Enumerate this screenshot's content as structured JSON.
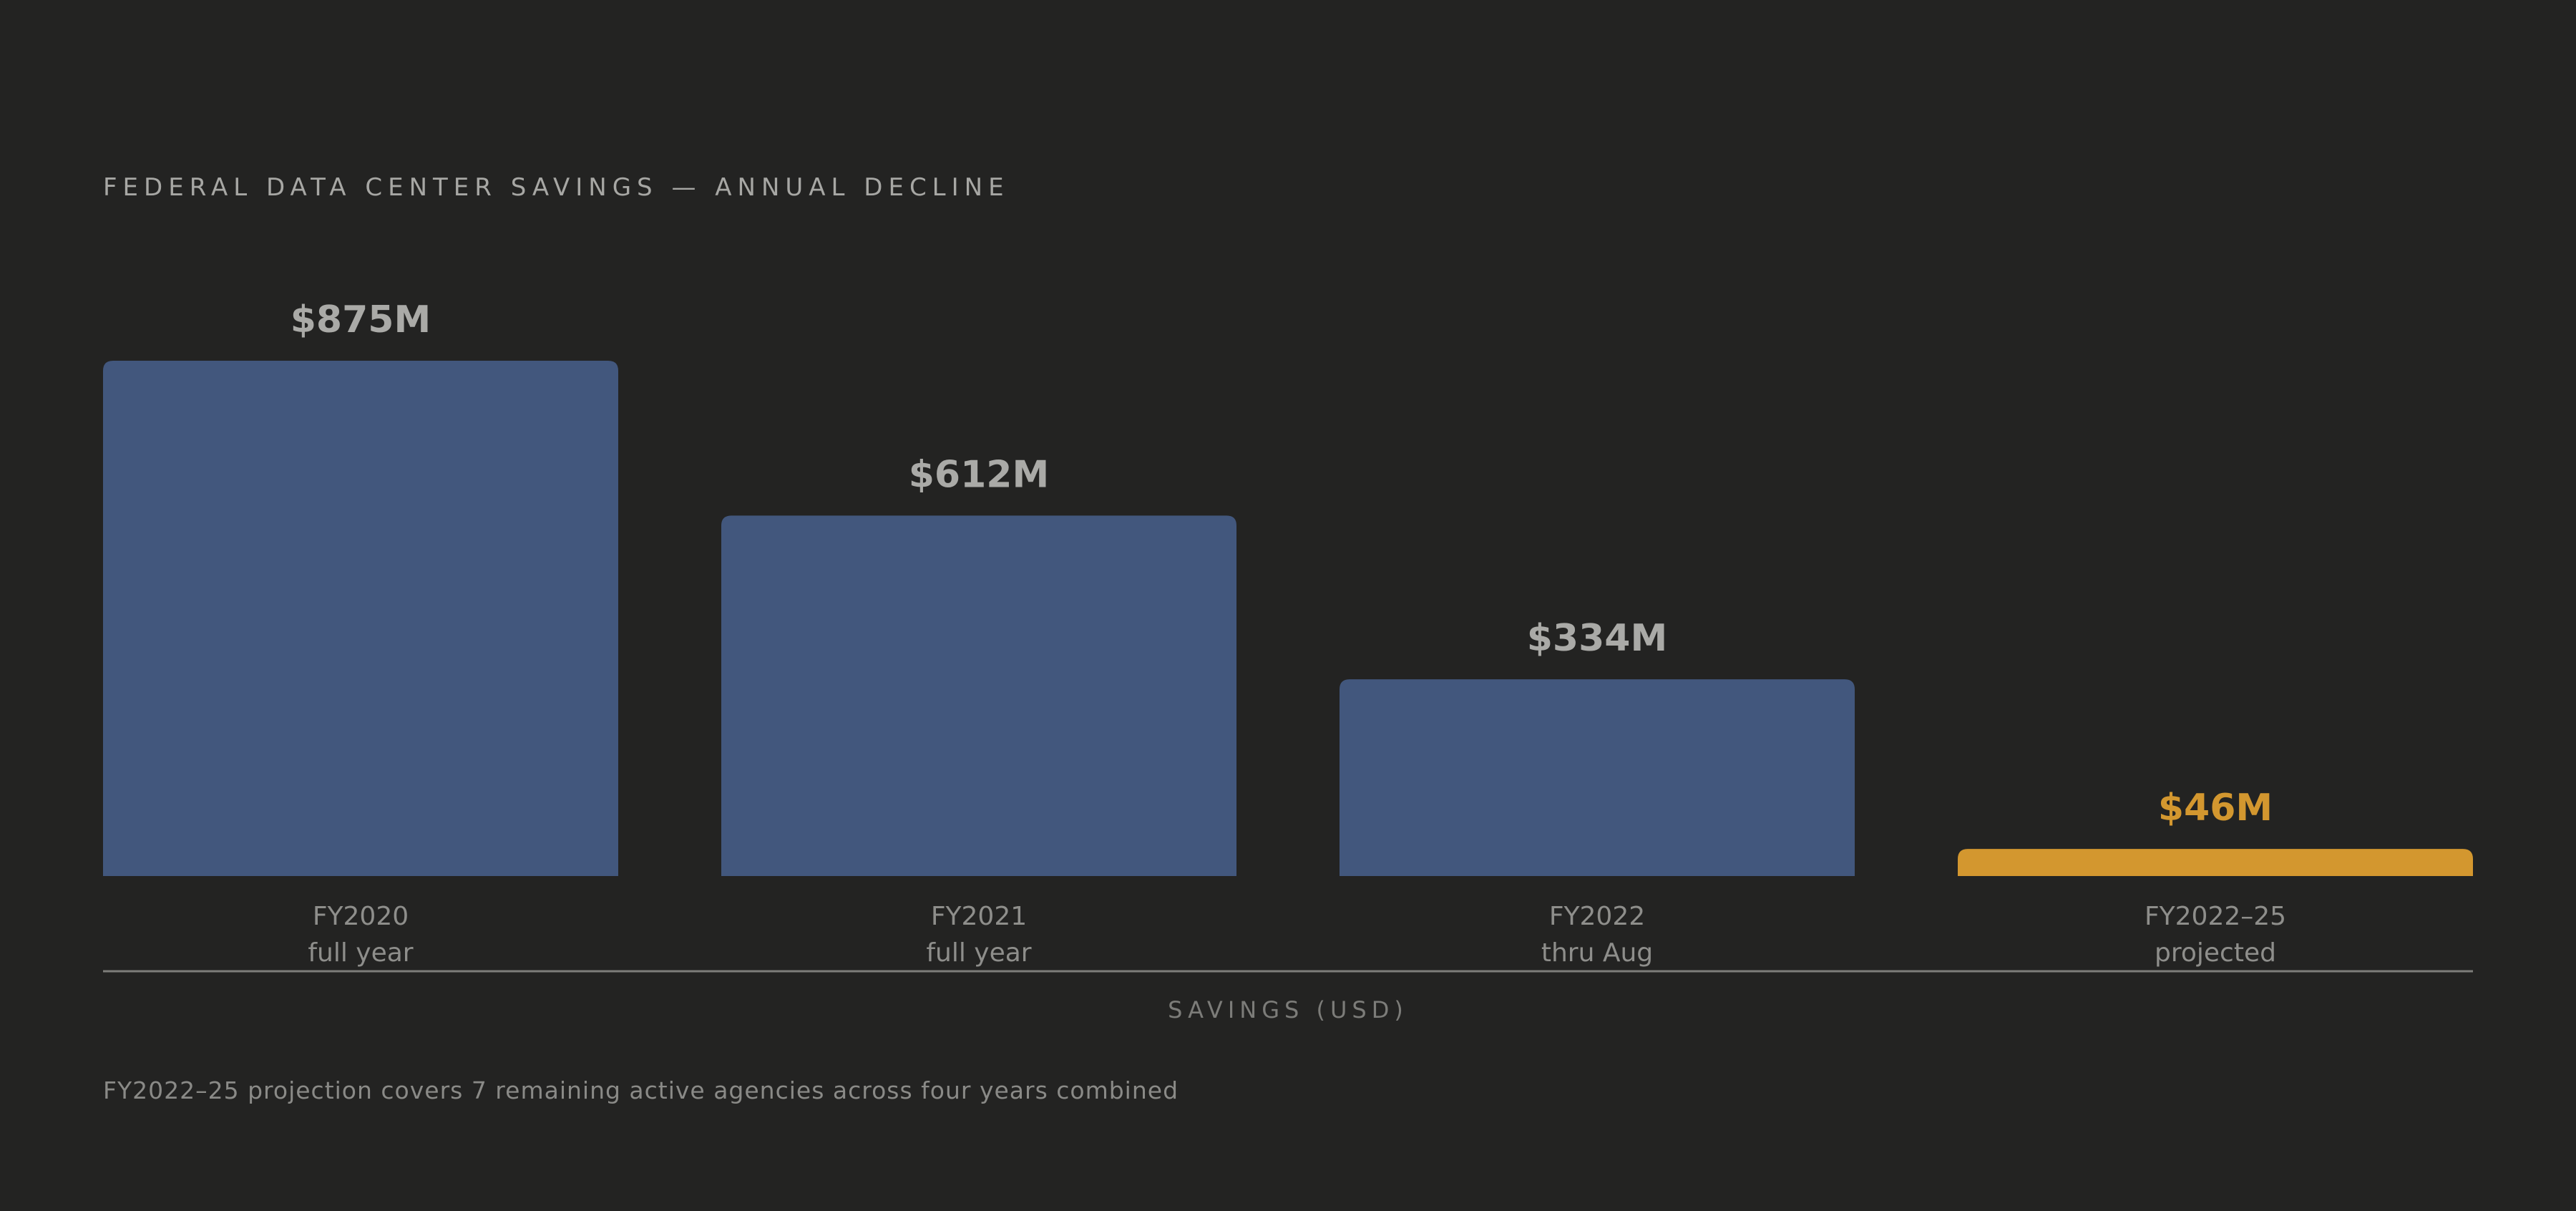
{
  "title": "FEDERAL DATA CENTER SAVINGS — ANNUAL DECLINE",
  "footnote": "FY2022–25 projection covers 7 remaining active agencies across four years combined",
  "colors": {
    "background": "#232322",
    "bar": "#42577d",
    "highlight": "#d3972f",
    "value_label": "#aaaaa7",
    "axis_line": "#7d7d7a"
  },
  "chart_data": {
    "type": "bar",
    "title": "FEDERAL DATA CENTER SAVINGS — ANNUAL DECLINE",
    "xlabel": "SAVINGS (USD)",
    "ylabel": "",
    "unit": "$M",
    "ylim": [
      0,
      875
    ],
    "grid": false,
    "categories": [
      {
        "name": "FY2020",
        "sub": "full year"
      },
      {
        "name": "FY2021",
        "sub": "full year"
      },
      {
        "name": "FY2022",
        "sub": "thru Aug"
      },
      {
        "name": "FY2022–25",
        "sub": "projected"
      }
    ],
    "values": [
      875,
      612,
      334,
      46
    ],
    "value_labels": [
      "$875M",
      "$612M",
      "$334M",
      "$46M"
    ],
    "highlighted": [
      false,
      false,
      false,
      true
    ]
  }
}
